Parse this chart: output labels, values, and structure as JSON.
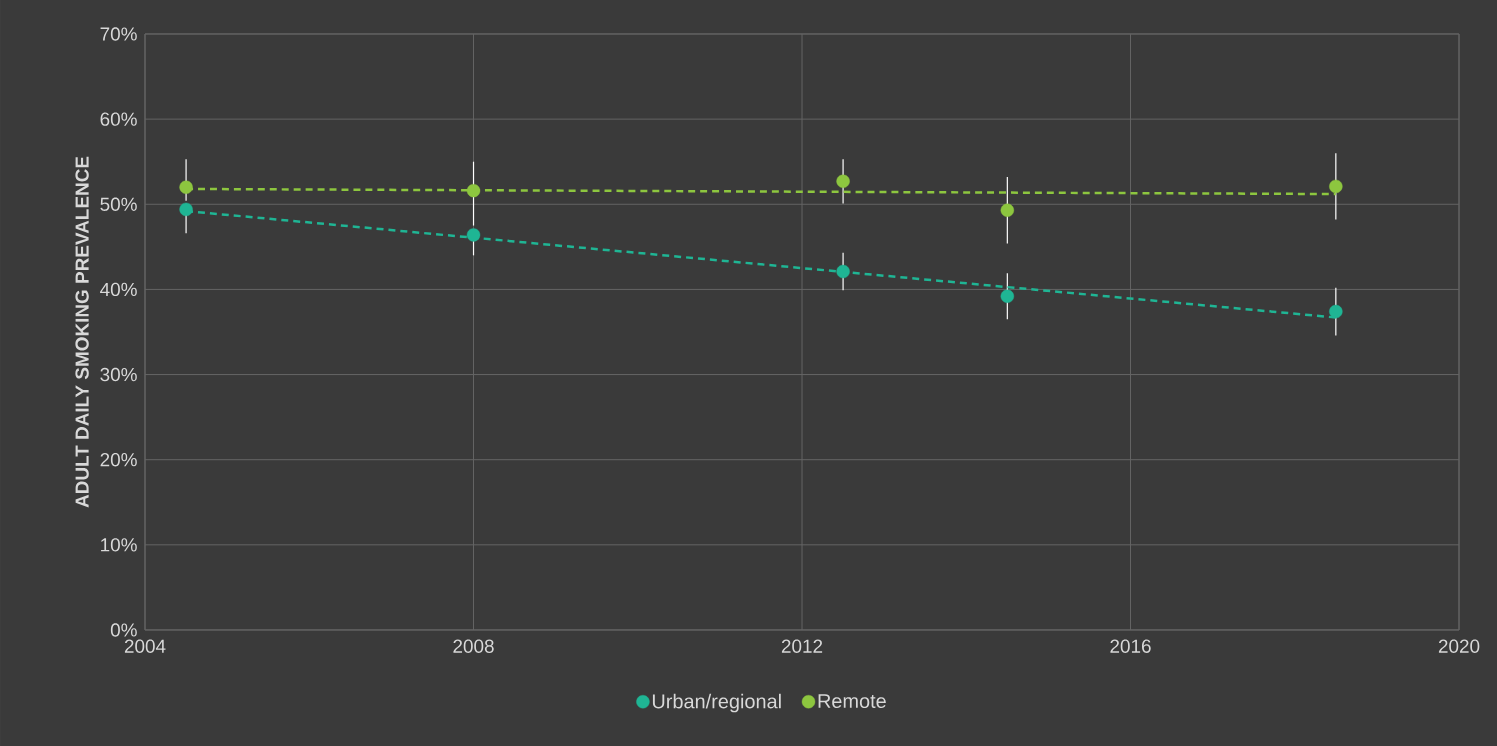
{
  "chart_data": {
    "type": "scatter",
    "ylabel": "ADULT DAILY SMOKING PREVALENCE",
    "xlim": [
      2004,
      2020
    ],
    "xticks": [
      2004,
      2008,
      2012,
      2016,
      2020
    ],
    "ylim": [
      0,
      70
    ],
    "yticks": [
      {
        "value": 0,
        "label": "0%"
      },
      {
        "value": 10,
        "label": "10%"
      },
      {
        "value": 20,
        "label": "20%"
      },
      {
        "value": 30,
        "label": "30%"
      },
      {
        "value": 40,
        "label": "40%"
      },
      {
        "value": 50,
        "label": "50%"
      },
      {
        "value": 60,
        "label": "60%"
      },
      {
        "value": 70,
        "label": "70%"
      }
    ],
    "grid": true,
    "legend": "bottom",
    "marker": "circle",
    "series": [
      {
        "name": "Urban/regional",
        "color": "#1fb594",
        "x": [
          2004.5,
          2008,
          2012.5,
          2014.5,
          2018.5
        ],
        "values": [
          49.4,
          46.4,
          42.1,
          39.2,
          37.4
        ],
        "errors": [
          [
            46.6,
            49.4
          ],
          [
            44.0,
            46.4
          ],
          2.2,
          2.7,
          2.8
        ]
      },
      {
        "name": "Remote",
        "color": "#8dc63f",
        "x": [
          2004.5,
          2008,
          2012.5,
          2014.5,
          2018.5
        ],
        "values": [
          52.0,
          51.6,
          52.7,
          49.3,
          52.1
        ],
        "errors": [
          [
            50.4,
            55.3
          ],
          [
            47.5,
            55.0
          ],
          2.6,
          3.9,
          3.9
        ]
      },
      {
        "type": "line",
        "line_style": "dashed",
        "marker": "none",
        "color": "#1fb594",
        "x": [
          2004.5,
          2018.5
        ],
        "values": [
          49.2,
          36.7
        ]
      },
      {
        "type": "line",
        "line_style": "dashed",
        "marker": "none",
        "color": "#8dc63f",
        "x": [
          2004.5,
          2018.5
        ],
        "values": [
          51.8,
          51.2
        ]
      }
    ]
  }
}
